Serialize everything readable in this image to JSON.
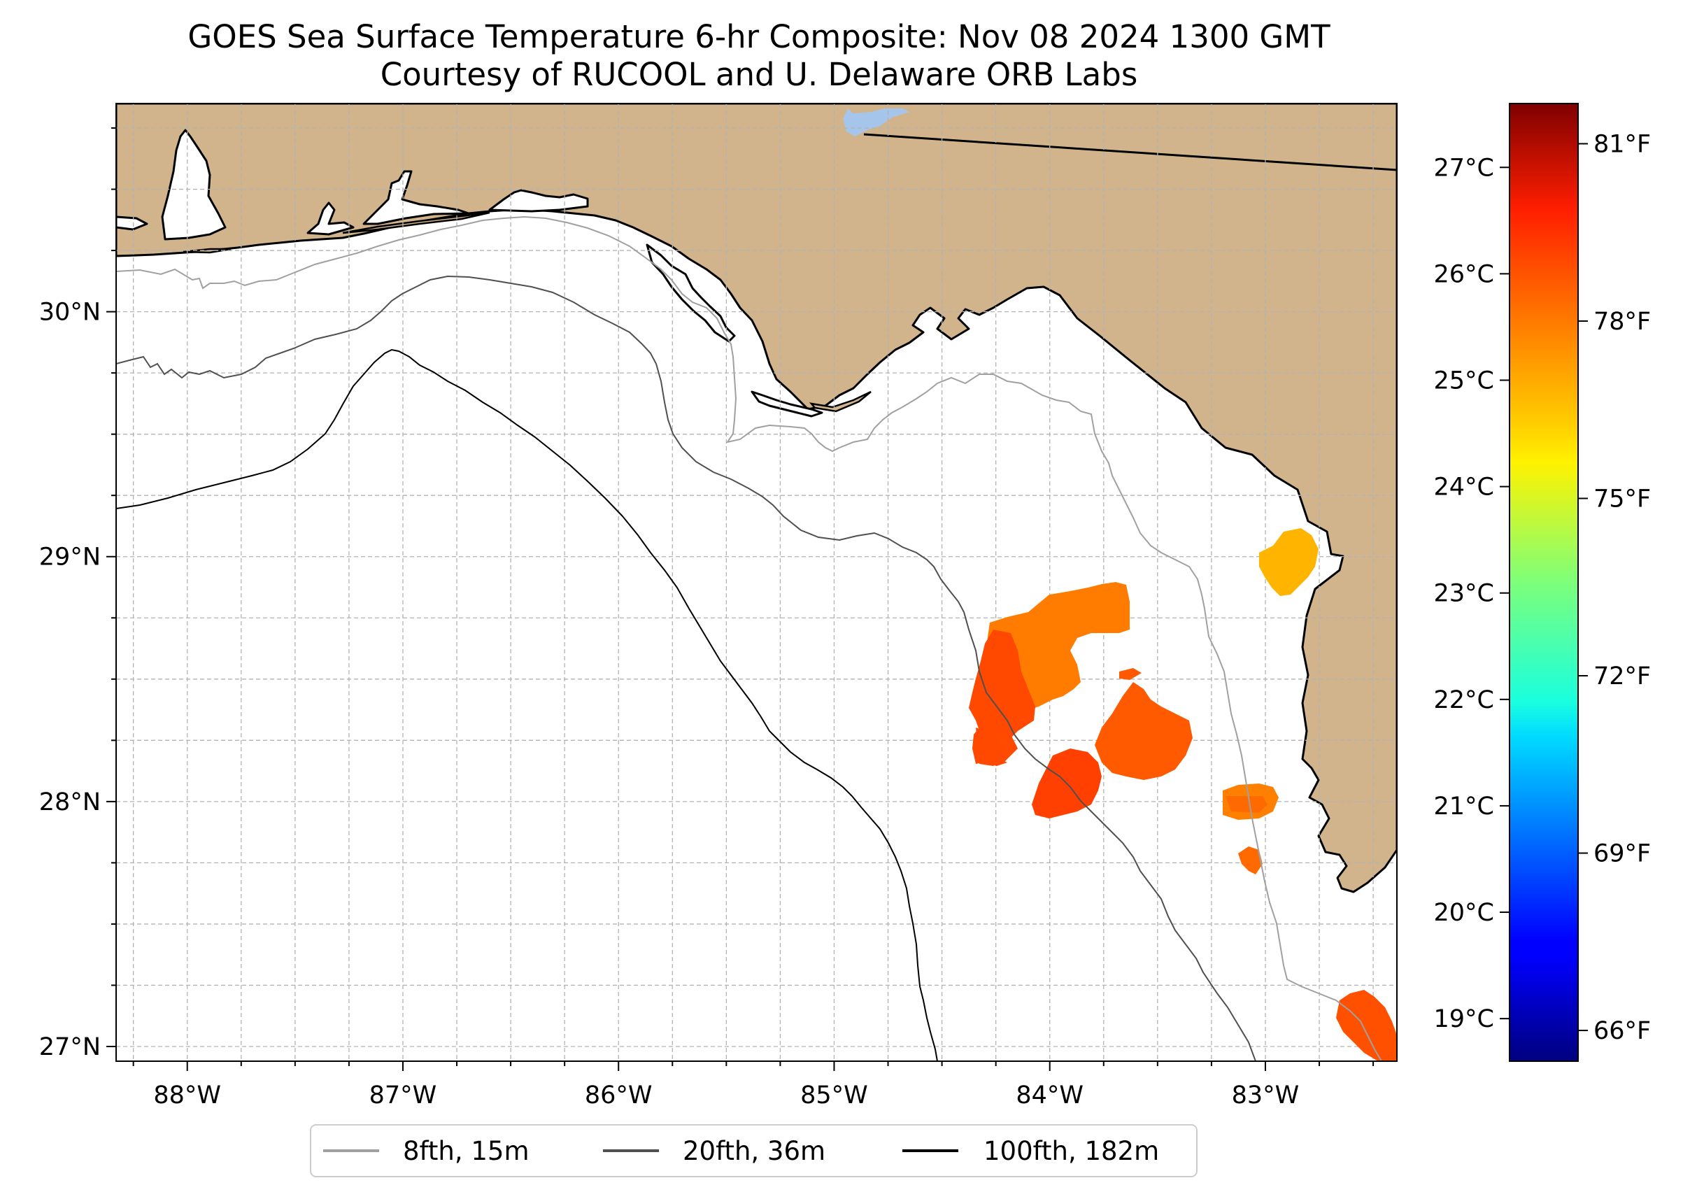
{
  "title": "GOES Sea Surface Temperature 6-hr Composite: Nov 08 2024 1300 GMT",
  "subtitle": "Courtesy of RUCOOL and U. Delaware ORB Labs",
  "map": {
    "lon_ticks": [
      {
        "value": -88,
        "label": "88°W"
      },
      {
        "value": -87,
        "label": "87°W"
      },
      {
        "value": -86,
        "label": "86°W"
      },
      {
        "value": -85,
        "label": "85°W"
      },
      {
        "value": -84,
        "label": "84°W"
      },
      {
        "value": -83,
        "label": "83°W"
      }
    ],
    "lat_ticks": [
      {
        "value": 30,
        "label": "30°N"
      },
      {
        "value": 29,
        "label": "29°N"
      },
      {
        "value": 28,
        "label": "28°N"
      },
      {
        "value": 27,
        "label": "27°N"
      }
    ],
    "extent": {
      "lon_min": -88.33,
      "lon_max": -82.39,
      "lat_min": 26.94,
      "lat_max": 30.85
    },
    "gridlines": true,
    "land_color": "#d2b48c",
    "water_color": "#ffffff",
    "lake_color": "#a6c5ea"
  },
  "colorbar": {
    "colormap": "jet",
    "celsius_range": [
      18.6,
      27.6
    ],
    "celsius_ticks": [
      {
        "value": 19,
        "label": "19°C"
      },
      {
        "value": 20,
        "label": "20°C"
      },
      {
        "value": 21,
        "label": "21°C"
      },
      {
        "value": 22,
        "label": "22°C"
      },
      {
        "value": 23,
        "label": "23°C"
      },
      {
        "value": 24,
        "label": "24°C"
      },
      {
        "value": 25,
        "label": "25°C"
      },
      {
        "value": 26,
        "label": "26°C"
      },
      {
        "value": 27,
        "label": "27°C"
      }
    ],
    "fahrenheit_ticks": [
      {
        "value": 66,
        "label": "66°F"
      },
      {
        "value": 69,
        "label": "69°F"
      },
      {
        "value": 72,
        "label": "72°F"
      },
      {
        "value": 75,
        "label": "75°F"
      },
      {
        "value": 78,
        "label": "78°F"
      },
      {
        "value": 81,
        "label": "81°F"
      }
    ]
  },
  "legend": {
    "placement": "bottom-center",
    "items": [
      {
        "label": "8fth, 15m",
        "color": "#a0a0a0"
      },
      {
        "label": "20fth, 36m",
        "color": "#505050"
      },
      {
        "label": "100fth, 182m",
        "color": "#000000"
      }
    ]
  },
  "sst_patches": [
    {
      "name": "big-bend-patch",
      "temp_c": 25.4
    },
    {
      "name": "tampa-offshore-patch",
      "temp_c": 26.1
    },
    {
      "name": "tampa-south-patch",
      "temp_c": 26.3
    },
    {
      "name": "cedar-key-nearshore-patch",
      "temp_c": 25.8
    },
    {
      "name": "northeast-nearshore-patch",
      "temp_c": 24.6
    },
    {
      "name": "nearshore-small-patch",
      "temp_c": 25.4
    },
    {
      "name": "nearshore-speck-patch",
      "temp_c": 25.7
    },
    {
      "name": "southeast-corner-patch",
      "temp_c": 26.0
    }
  ]
}
